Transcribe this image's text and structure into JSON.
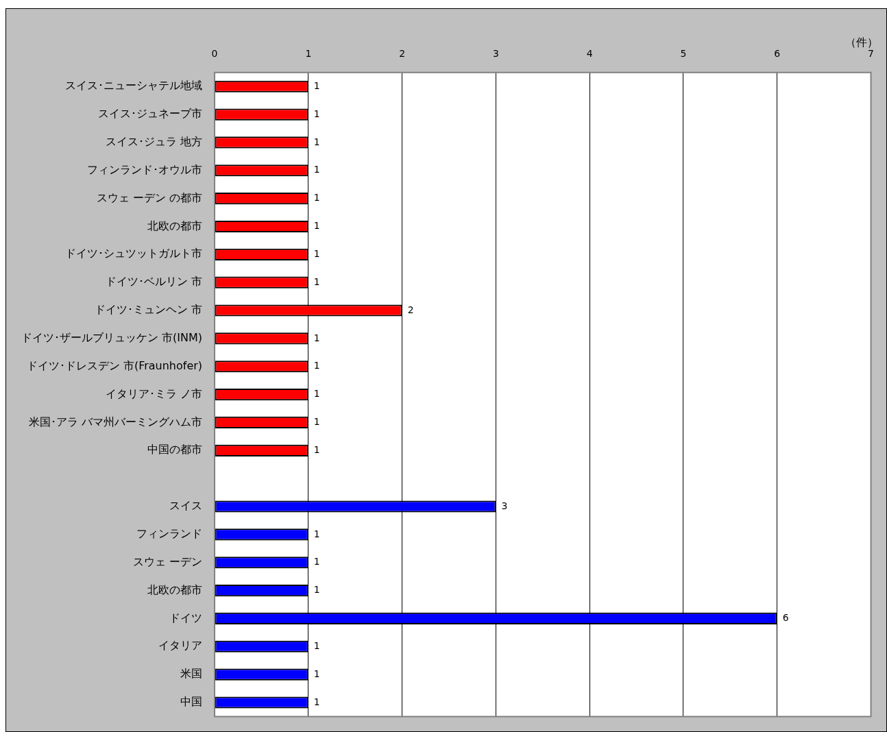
{
  "chart_data": {
    "type": "bar",
    "orientation": "horizontal",
    "xlabel": "（件）",
    "categories": [
      "スイス･ニューシャテル地域",
      "スイス･ジュネーブ市",
      "スイス･ジュラ 地方",
      "フィンランド･オウル市",
      "スウェ ーデン の都市",
      "北欧の都市",
      "ドイツ･シュツットガルト市",
      "ドイツ･ベルリン 市",
      "ドイツ･ミュンヘン 市",
      "ドイツ･ザールブリュッケン 市(INM)",
      "ドイツ･ドレスデン 市(Fraunhofer)",
      "イタリア･ミラ ノ市",
      "米国･アラ バマ州バーミングハム市",
      "中国の都市",
      null,
      "スイス",
      "フィンランド",
      "スウェ ーデン",
      "北欧の都市",
      "ドイツ",
      "イタリア",
      "米国",
      "中国"
    ],
    "values": [
      1,
      1,
      1,
      1,
      1,
      1,
      1,
      1,
      2,
      1,
      1,
      1,
      1,
      1,
      null,
      3,
      1,
      1,
      1,
      6,
      1,
      1,
      1
    ],
    "colors": [
      "#ff0000",
      "#ff0000",
      "#ff0000",
      "#ff0000",
      "#ff0000",
      "#ff0000",
      "#ff0000",
      "#ff0000",
      "#ff0000",
      "#ff0000",
      "#ff0000",
      "#ff0000",
      "#ff0000",
      "#ff0000",
      null,
      "#0000ff",
      "#0000ff",
      "#0000ff",
      "#0000ff",
      "#0000ff",
      "#0000ff",
      "#0000ff",
      "#0000ff"
    ],
    "xlim": [
      0,
      7
    ],
    "xticks": [
      0,
      1,
      2,
      3,
      4,
      5,
      6,
      7
    ],
    "grid": "x",
    "data_labels": true,
    "legend": false
  }
}
